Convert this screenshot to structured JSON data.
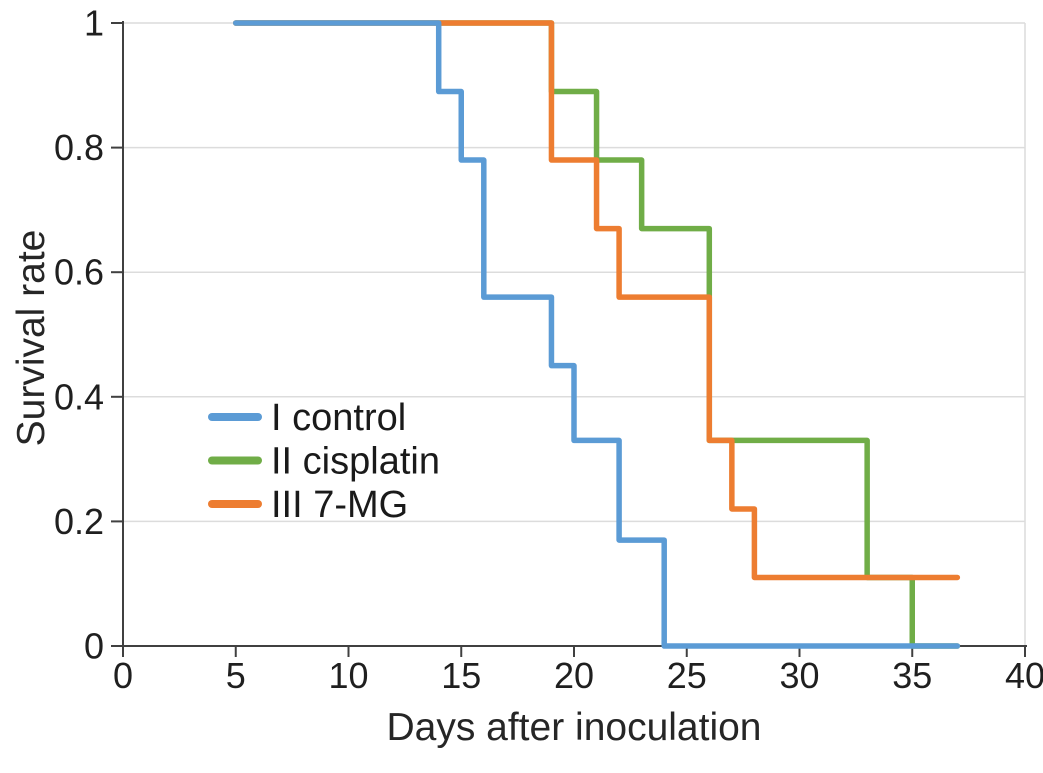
{
  "figure": {
    "background": "#FFFFFF",
    "text_color": "#262626",
    "axis_line_color": "#404040",
    "gridline_color": "#DCDCDC",
    "plot_right_border_color": "#DCDCDC"
  },
  "chart_data": {
    "type": "line",
    "subtype": "kaplan-meier-survival-step",
    "title": "",
    "xlabel": "Days after inoculation",
    "ylabel": "Survival rate",
    "xlim": [
      0,
      40
    ],
    "ylim": [
      0,
      1
    ],
    "xticks": [
      0,
      5,
      10,
      15,
      20,
      25,
      30,
      35,
      40
    ],
    "xtick_labels": [
      "0",
      "5",
      "10",
      "15",
      "20",
      "25",
      "30",
      "35",
      "40"
    ],
    "yticks": [
      0,
      0.2,
      0.4,
      0.6,
      0.8,
      1
    ],
    "ytick_labels": [
      "0",
      "0.2",
      "0.4",
      "0.6",
      "0.8",
      "1"
    ],
    "grid": "horizontal",
    "legend_position": "inside-middle-left",
    "series": [
      {
        "name": "I control",
        "color": "#5B9BD5",
        "start_day": 5,
        "end_day": 37,
        "steps": [
          {
            "day": 5,
            "survival": 1.0
          },
          {
            "day": 14,
            "survival": 0.89
          },
          {
            "day": 15,
            "survival": 0.78
          },
          {
            "day": 16,
            "survival": 0.56
          },
          {
            "day": 19,
            "survival": 0.45
          },
          {
            "day": 20,
            "survival": 0.33
          },
          {
            "day": 22,
            "survival": 0.17
          },
          {
            "day": 24,
            "survival": 0
          }
        ]
      },
      {
        "name": "II cisplatin",
        "color": "#70AD47",
        "start_day": 5,
        "end_day": 37,
        "steps": [
          {
            "day": 5,
            "survival": 1.0
          },
          {
            "day": 19,
            "survival": 0.89
          },
          {
            "day": 21,
            "survival": 0.78
          },
          {
            "day": 23,
            "survival": 0.67
          },
          {
            "day": 26,
            "survival": 0.33
          },
          {
            "day": 33,
            "survival": 0.11
          },
          {
            "day": 35,
            "survival": 0
          }
        ]
      },
      {
        "name": "III 7-MG",
        "color": "#ED7D31",
        "start_day": 5,
        "end_day": 37,
        "steps": [
          {
            "day": 5,
            "survival": 1.0
          },
          {
            "day": 19,
            "survival": 0.78
          },
          {
            "day": 21,
            "survival": 0.67
          },
          {
            "day": 22,
            "survival": 0.56
          },
          {
            "day": 26,
            "survival": 0.33
          },
          {
            "day": 27,
            "survival": 0.22
          },
          {
            "day": 28,
            "survival": 0.11
          }
        ]
      }
    ],
    "draw_order": [
      1,
      2,
      0
    ]
  }
}
